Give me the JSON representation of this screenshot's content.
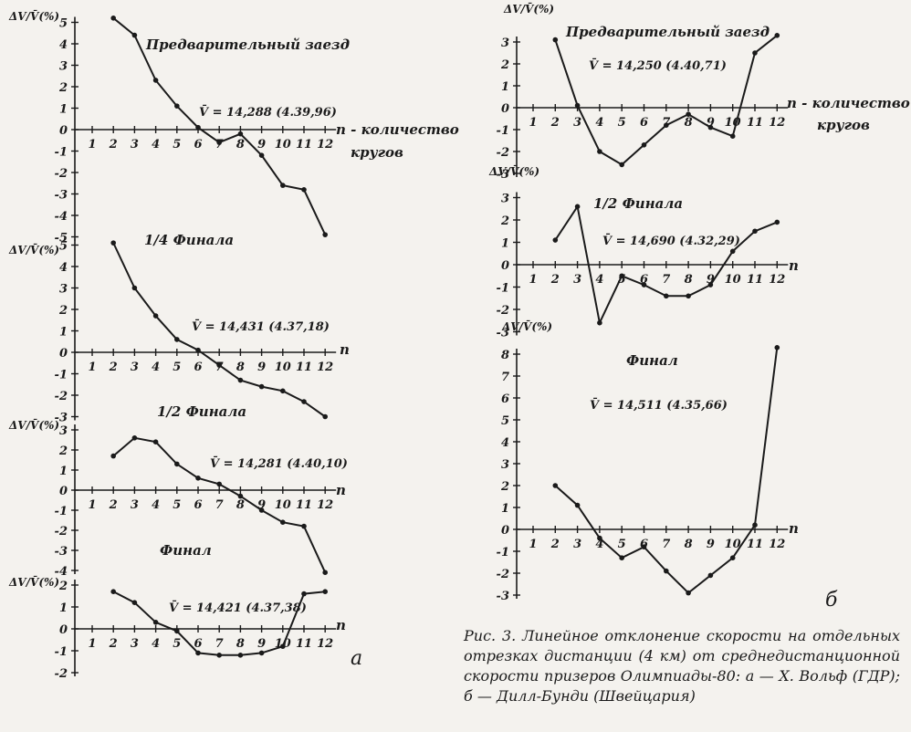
{
  "panel_labels": {
    "left": "а",
    "right": "б"
  },
  "caption": "Рис. 3. Линейное отклонение скорости на отдельных отрезках дистанции (4 км) от среднедистанционной скорости призеров Олимпиады-80: а — Х. Вольф (ГДР); б — Дилл-Бунди (Швейцария)",
  "chart_data": [
    {
      "type": "line",
      "panel": "а",
      "title": "Предварительный заезд",
      "vbar": "V̄ = 14,288 (4.39,96)",
      "ylabel": "ΔV/V̄(%)",
      "xlabel": "n - количество кругов",
      "ylim": [
        -5,
        5
      ],
      "yticks": [
        5,
        4,
        3,
        2,
        1,
        0,
        -1,
        -2,
        -3,
        -4,
        -5
      ],
      "xticks": [
        1,
        2,
        3,
        4,
        5,
        6,
        7,
        8,
        9,
        10,
        11,
        12
      ],
      "x": [
        2,
        3,
        4,
        5,
        6,
        7,
        8,
        9,
        10,
        11,
        12
      ],
      "y": [
        5.2,
        4.4,
        2.3,
        1.1,
        0.1,
        -0.6,
        -0.2,
        -1.2,
        -2.6,
        -2.8,
        -4.9
      ]
    },
    {
      "type": "line",
      "panel": "а",
      "title": "1/4 Финала",
      "vbar": "V̄ = 14,431 (4.37,18)",
      "ylabel": "ΔV/V̄(%)",
      "xlabel": "n",
      "ylim": [
        -3,
        5
      ],
      "yticks": [
        5,
        4,
        3,
        2,
        1,
        0,
        -1,
        -2,
        -3
      ],
      "xticks": [
        1,
        2,
        3,
        4,
        5,
        6,
        7,
        8,
        9,
        10,
        11,
        12
      ],
      "x": [
        2,
        3,
        4,
        5,
        6,
        7,
        8,
        9,
        10,
        11,
        12
      ],
      "y": [
        5.1,
        3.0,
        1.7,
        0.6,
        0.1,
        -0.6,
        -1.3,
        -1.6,
        -1.8,
        -2.3,
        -3.0
      ]
    },
    {
      "type": "line",
      "panel": "а",
      "title": "1/2 Финала",
      "vbar": "V̄ = 14,281 (4.40,10)",
      "ylabel": "ΔV/V̄(%)",
      "xlabel": "n",
      "ylim": [
        -4,
        3
      ],
      "yticks": [
        3,
        2,
        1,
        0,
        -1,
        -2,
        -3,
        -4
      ],
      "xticks": [
        1,
        2,
        3,
        4,
        5,
        6,
        7,
        8,
        9,
        10,
        11,
        12
      ],
      "x": [
        2,
        3,
        4,
        5,
        6,
        7,
        8,
        9,
        10,
        11,
        12
      ],
      "y": [
        1.7,
        2.6,
        2.4,
        1.3,
        0.6,
        0.3,
        -0.3,
        -1.0,
        -1.6,
        -1.8,
        -4.1
      ]
    },
    {
      "type": "line",
      "panel": "а",
      "title": "Финал",
      "vbar": "V̄ = 14,421 (4.37,38)",
      "ylabel": "ΔV/V̄(%)",
      "xlabel": "n",
      "ylim": [
        -2,
        2
      ],
      "yticks": [
        2,
        1,
        0,
        -1,
        -2
      ],
      "xticks": [
        1,
        2,
        3,
        4,
        5,
        6,
        7,
        8,
        9,
        10,
        11,
        12
      ],
      "x": [
        2,
        3,
        4,
        5,
        6,
        7,
        8,
        9,
        10,
        11,
        12
      ],
      "y": [
        1.7,
        1.2,
        0.3,
        -0.1,
        -1.1,
        -1.2,
        -1.2,
        -1.1,
        -0.8,
        1.6,
        1.7
      ]
    },
    {
      "type": "line",
      "panel": "б",
      "title": "Предварительный заезд",
      "vbar": "V̄ = 14,250 (4.40,71)",
      "ylabel": "ΔV/V̄(%)",
      "xlabel": "n - количество кругов",
      "ylim": [
        -3,
        3
      ],
      "yticks": [
        3,
        2,
        1,
        0,
        -1,
        -2,
        -3
      ],
      "xticks": [
        1,
        2,
        3,
        4,
        5,
        6,
        7,
        8,
        9,
        10,
        11,
        12
      ],
      "x": [
        2,
        3,
        4,
        5,
        6,
        7,
        8,
        9,
        10,
        11,
        12
      ],
      "y": [
        3.1,
        0.1,
        -2.0,
        -2.6,
        -1.7,
        -0.8,
        -0.3,
        -0.9,
        -1.3,
        2.5,
        3.3
      ]
    },
    {
      "type": "line",
      "panel": "б",
      "title": "1/2 Финала",
      "vbar": "V̄ = 14,690 (4.32,29)",
      "ylabel": "ΔV/V̄(%)",
      "xlabel": "n",
      "ylim": [
        -3,
        3
      ],
      "yticks": [
        3,
        2,
        1,
        0,
        -1,
        -2,
        -3
      ],
      "xticks": [
        1,
        2,
        3,
        4,
        5,
        6,
        7,
        8,
        9,
        10,
        11,
        12
      ],
      "x": [
        2,
        3,
        4,
        5,
        6,
        7,
        8,
        9,
        10,
        11,
        12
      ],
      "y": [
        1.1,
        2.6,
        -2.6,
        -0.5,
        -0.9,
        -1.4,
        -1.4,
        -0.9,
        0.6,
        1.5,
        1.9
      ]
    },
    {
      "type": "line",
      "panel": "б",
      "title": "Финал",
      "vbar": "V̄ = 14,511 (4.35,66)",
      "ylabel": "ΔV/V̄(%)",
      "xlabel": "n",
      "ylim": [
        -3,
        8
      ],
      "yticks": [
        8,
        7,
        6,
        5,
        4,
        3,
        2,
        1,
        0,
        -1,
        -2,
        -3
      ],
      "xticks": [
        1,
        2,
        3,
        4,
        5,
        6,
        7,
        8,
        9,
        10,
        11,
        12
      ],
      "x": [
        2,
        3,
        4,
        5,
        6,
        7,
        8,
        9,
        10,
        11,
        12
      ],
      "y": [
        2.0,
        1.1,
        -0.4,
        -1.3,
        -0.8,
        -1.9,
        -2.9,
        -2.1,
        -1.3,
        0.2,
        8.3
      ]
    }
  ]
}
